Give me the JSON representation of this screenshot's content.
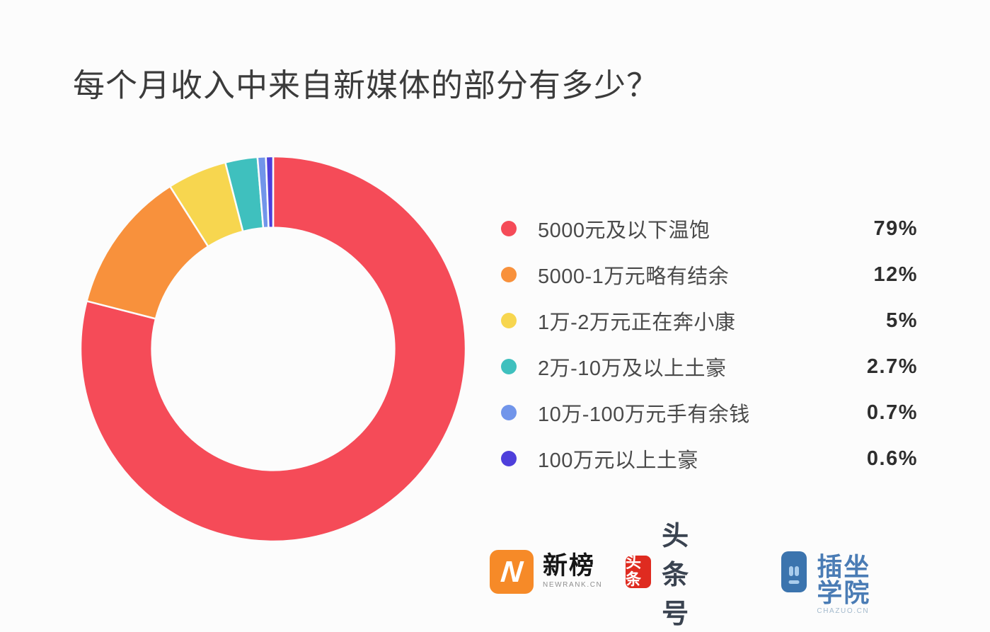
{
  "page": {
    "background": "#FCFCFC"
  },
  "chart_data": {
    "type": "pie",
    "subtype": "donut",
    "title": "每个月收入中来自新媒体的部分有多少？",
    "legend_position": "right",
    "start_angle": "top",
    "direction": "clockwise",
    "inner_radius_ratio": 0.63,
    "gap_color": "#FCFCFC",
    "segments": [
      {
        "label": "5000元及以下温饱",
        "value": 79,
        "display": "79%",
        "color": "#F54B58"
      },
      {
        "label": "5000-1万元略有结余",
        "value": 12,
        "display": "12%",
        "color": "#F8913C"
      },
      {
        "label": "1万-2万元正在奔小康",
        "value": 5,
        "display": "5%",
        "color": "#F7D64F"
      },
      {
        "label": "2万-10万及以上土豪",
        "value": 2.7,
        "display": "2.7%",
        "color": "#3FC0BE"
      },
      {
        "label": "10万-100万元手有余钱",
        "value": 0.7,
        "display": "0.7%",
        "color": "#7195EA"
      },
      {
        "label": "100万元以上土豪",
        "value": 0.6,
        "display": "0.6%",
        "color": "#4E3FDB"
      }
    ]
  },
  "footer": {
    "logos": [
      {
        "name": "新榜",
        "sub": "NEWRANK.CN",
        "badge_text": "N",
        "badge_color": "#F68A28"
      },
      {
        "name": "头条号",
        "badge_text": "头条",
        "badge_color": "#DF2B20"
      },
      {
        "name": "插坐学院",
        "sub": "CHAZUO.CN",
        "badge_color": "#3B74AE"
      }
    ]
  }
}
